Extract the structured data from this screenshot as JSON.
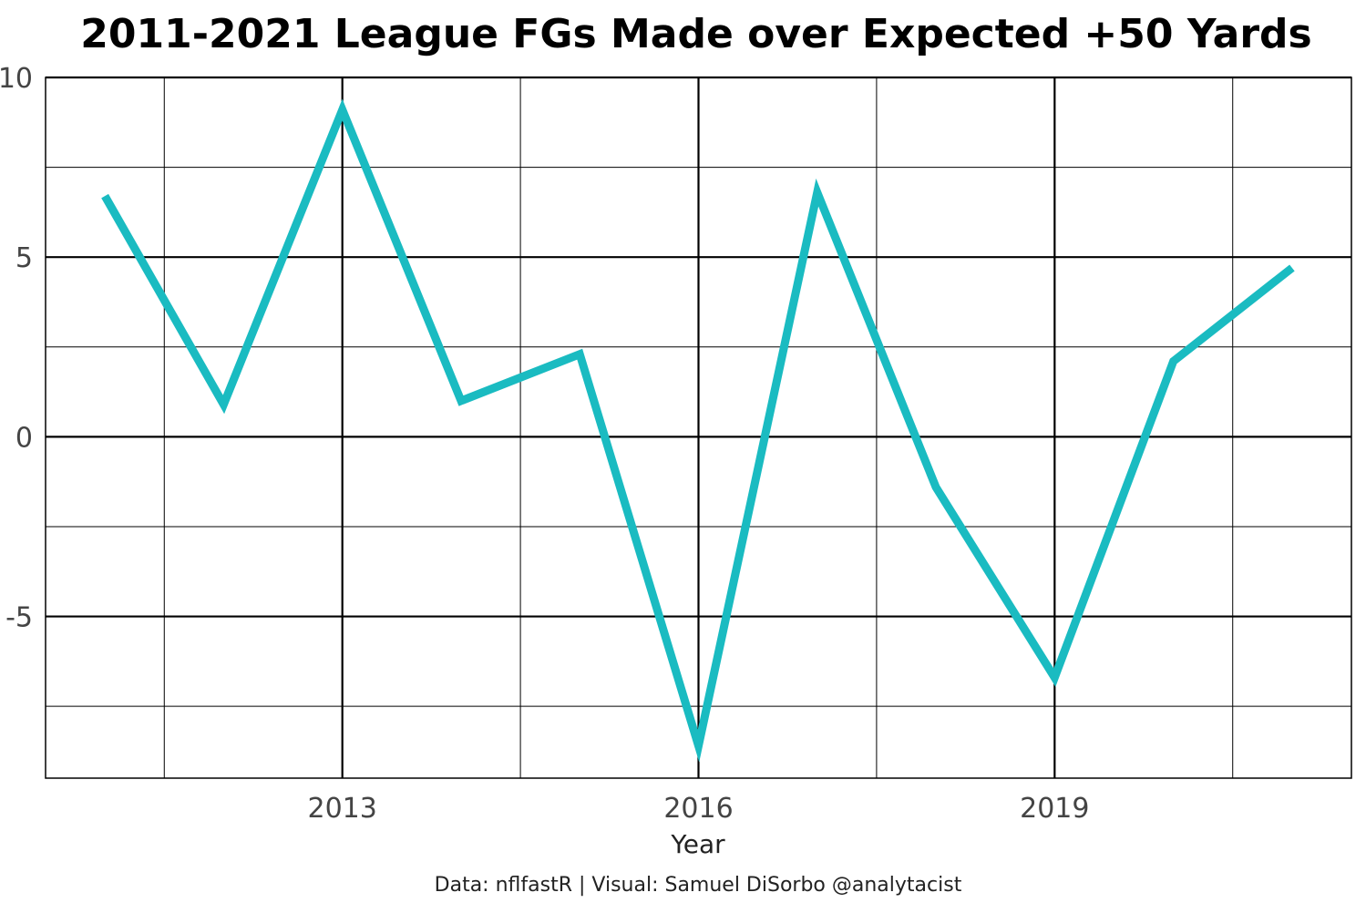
{
  "chart_data": {
    "type": "line",
    "title": "2011-2021 League FGs Made over Expected +50 Yards",
    "xlabel": "Year",
    "ylabel": "",
    "caption": "Data: nflfastR | Visual: Samuel DiSorbo @analytacist",
    "x": [
      2011,
      2012,
      2013,
      2014,
      2015,
      2016,
      2017,
      2018,
      2019,
      2020,
      2021
    ],
    "series": [
      {
        "values": [
          6.7,
          0.9,
          9.1,
          1.0,
          2.3,
          -8.6,
          6.8,
          -1.4,
          -6.7,
          2.1,
          4.7
        ]
      }
    ],
    "xlim": [
      2010.5,
      2021.5
    ],
    "ylim": [
      -9.5,
      10
    ],
    "x_major_ticks": [
      2013,
      2016,
      2019
    ],
    "x_minor_ticks": [
      2011.5,
      2014.5,
      2017.5,
      2020.5
    ],
    "y_major_ticks": [
      10,
      5,
      0,
      -5
    ],
    "y_minor_ticks": [
      7.5,
      2.5,
      -2.5,
      -7.5
    ],
    "x_tick_labels": [
      "2013",
      "2016",
      "2019"
    ],
    "y_tick_labels": [
      "10",
      "5",
      "0",
      "-5"
    ],
    "grid": true,
    "line_color": "#1ABBC1"
  }
}
